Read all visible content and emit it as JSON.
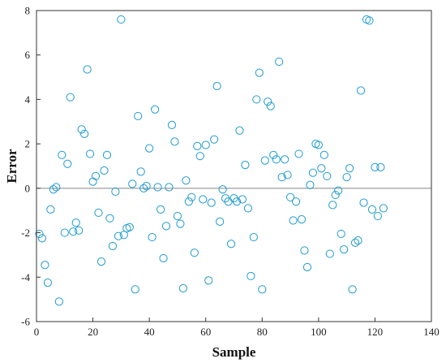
{
  "chart_data": {
    "type": "scatter",
    "title": "",
    "xlabel": "Sample",
    "ylabel": "Error",
    "xlim": [
      0,
      140
    ],
    "ylim": [
      -6,
      8
    ],
    "xticks": [
      0,
      20,
      40,
      60,
      80,
      100,
      120,
      140
    ],
    "yticks": [
      -6,
      -4,
      -2,
      0,
      2,
      4,
      6,
      8
    ],
    "grid": false,
    "reference_line_y": 0,
    "marker": "open-circle",
    "colors": {
      "marker": "#1f9bd1",
      "axis": "#333333",
      "zero_line": "#888888"
    },
    "series": [
      {
        "points": [
          [
            1,
            -2.05
          ],
          [
            2,
            -2.25
          ],
          [
            3,
            -3.45
          ],
          [
            4,
            -4.25
          ],
          [
            5,
            -0.95
          ],
          [
            6,
            -0.05
          ],
          [
            7,
            0.05
          ],
          [
            8,
            -5.1
          ],
          [
            9,
            1.5
          ],
          [
            10,
            -2.0
          ],
          [
            11,
            1.1
          ],
          [
            12,
            4.1
          ],
          [
            13,
            -1.95
          ],
          [
            14,
            -1.55
          ],
          [
            15,
            -1.9
          ],
          [
            16,
            2.65
          ],
          [
            17,
            2.45
          ],
          [
            18,
            5.35
          ],
          [
            19,
            1.55
          ],
          [
            20,
            0.3
          ],
          [
            21,
            0.55
          ],
          [
            22,
            -1.1
          ],
          [
            23,
            -3.3
          ],
          [
            24,
            0.8
          ],
          [
            25,
            1.5
          ],
          [
            26,
            -1.35
          ],
          [
            27,
            -2.6
          ],
          [
            28,
            -0.15
          ],
          [
            29,
            -2.15
          ],
          [
            30,
            7.6
          ],
          [
            31,
            -2.1
          ],
          [
            32,
            -1.8
          ],
          [
            33,
            -1.75
          ],
          [
            34,
            0.2
          ],
          [
            35,
            -4.55
          ],
          [
            36,
            3.25
          ],
          [
            37,
            0.75
          ],
          [
            38,
            0.0
          ],
          [
            39,
            0.1
          ],
          [
            40,
            1.8
          ],
          [
            41,
            -2.2
          ],
          [
            42,
            3.55
          ],
          [
            43,
            0.05
          ],
          [
            44,
            -0.95
          ],
          [
            45,
            -3.15
          ],
          [
            46,
            -1.7
          ],
          [
            47,
            0.05
          ],
          [
            48,
            2.85
          ],
          [
            49,
            2.1
          ],
          [
            50,
            -1.25
          ],
          [
            51,
            -1.6
          ],
          [
            52,
            -4.5
          ],
          [
            53,
            0.35
          ],
          [
            54,
            -0.6
          ],
          [
            55,
            -0.4
          ],
          [
            56,
            -2.9
          ],
          [
            57,
            1.9
          ],
          [
            58,
            1.45
          ],
          [
            59,
            -0.5
          ],
          [
            60,
            1.95
          ],
          [
            61,
            -4.15
          ],
          [
            62,
            -0.65
          ],
          [
            63,
            2.2
          ],
          [
            64,
            4.6
          ],
          [
            65,
            -1.5
          ],
          [
            66,
            -0.05
          ],
          [
            67,
            -0.45
          ],
          [
            68,
            -0.6
          ],
          [
            69,
            -2.5
          ],
          [
            70,
            -0.45
          ],
          [
            71,
            -0.6
          ],
          [
            72,
            2.6
          ],
          [
            73,
            -0.5
          ],
          [
            74,
            1.05
          ],
          [
            75,
            -0.9
          ],
          [
            76,
            -3.95
          ],
          [
            77,
            -2.2
          ],
          [
            78,
            4.0
          ],
          [
            79,
            5.2
          ],
          [
            80,
            -4.55
          ],
          [
            81,
            1.25
          ],
          [
            82,
            3.9
          ],
          [
            83,
            3.7
          ],
          [
            84,
            1.5
          ],
          [
            85,
            1.3
          ],
          [
            86,
            5.7
          ],
          [
            87,
            0.5
          ],
          [
            88,
            1.3
          ],
          [
            89,
            0.6
          ],
          [
            90,
            -0.4
          ],
          [
            91,
            -1.45
          ],
          [
            92,
            -0.6
          ],
          [
            93,
            1.55
          ],
          [
            94,
            -1.4
          ],
          [
            95,
            -2.8
          ],
          [
            96,
            -3.55
          ],
          [
            97,
            0.15
          ],
          [
            98,
            0.7
          ],
          [
            99,
            2.0
          ],
          [
            100,
            1.95
          ],
          [
            101,
            0.9
          ],
          [
            102,
            1.5
          ],
          [
            103,
            0.55
          ],
          [
            104,
            -2.95
          ],
          [
            105,
            -0.75
          ],
          [
            106,
            -0.3
          ],
          [
            107,
            -0.1
          ],
          [
            108,
            -2.05
          ],
          [
            109,
            -2.75
          ],
          [
            110,
            0.5
          ],
          [
            111,
            0.9
          ],
          [
            112,
            -4.55
          ],
          [
            113,
            -2.45
          ],
          [
            114,
            -2.35
          ],
          [
            115,
            4.4
          ],
          [
            116,
            -0.65
          ],
          [
            117,
            7.6
          ],
          [
            118,
            7.55
          ],
          [
            119,
            -0.95
          ],
          [
            120,
            0.95
          ],
          [
            121,
            -1.25
          ],
          [
            122,
            0.95
          ],
          [
            123,
            -0.9
          ]
        ]
      }
    ]
  }
}
